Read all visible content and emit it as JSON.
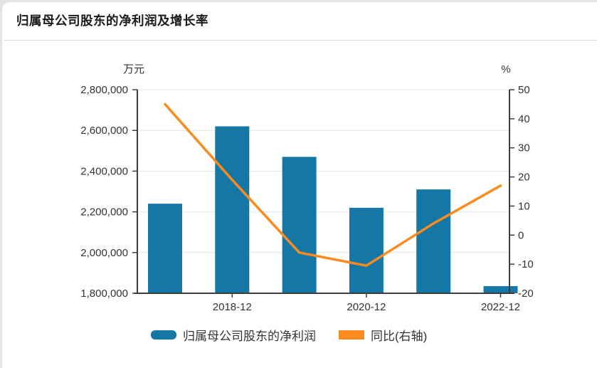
{
  "page": {
    "title": "归属母公司股东的净利润及增长率"
  },
  "chart_data": {
    "type": "bar",
    "subtype": "bar-line-combo",
    "categories": [
      "2017-12",
      "2018-12",
      "2019-12",
      "2020-12",
      "2021-12",
      "2022-12"
    ],
    "visible_x_tick_labels": [
      "2018-12",
      "2020-12",
      "2022-12"
    ],
    "series": [
      {
        "name": "归属母公司股东的净利润",
        "type": "bar",
        "axis": "left",
        "unit": "万元",
        "color": "#1577a6",
        "values": [
          2240000,
          2620000,
          2470000,
          2220000,
          2310000,
          1835000
        ]
      },
      {
        "name": "同比(右轴)",
        "type": "line",
        "axis": "right",
        "unit": "%",
        "color": "#fb8b1f",
        "values": [
          45,
          19,
          -6,
          -10.5,
          4,
          17
        ]
      }
    ],
    "left_axis": {
      "unit": "万元",
      "min": 1800000,
      "max": 2800000,
      "tick_step": 200000,
      "tick_labels": [
        "2,800,000",
        "2,600,000",
        "2,400,000",
        "2,200,000",
        "2,000,000",
        "1,800,000"
      ]
    },
    "right_axis": {
      "unit": "%",
      "min": -20,
      "max": 50,
      "tick_step": 10,
      "tick_labels": [
        "50",
        "40",
        "30",
        "20",
        "10",
        "0",
        "-10",
        "-20"
      ]
    },
    "grid": true,
    "legend_position": "bottom"
  },
  "colors": {
    "bar": "#1577a6",
    "line": "#fb8b1f",
    "axis": "#3d3d3d",
    "gridline": "#e4e4e4",
    "tick_text": "#333333",
    "title_text": "#1b1b1b",
    "divider": "#dcdcdc",
    "card_bg": "#ffffff",
    "page_bg": "#e4e4e4"
  }
}
